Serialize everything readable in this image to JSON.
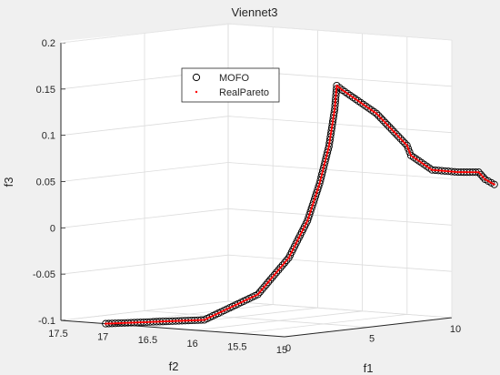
{
  "chart_data": {
    "type": "scatter3d",
    "title": "Viennet3",
    "xlabel": "f1",
    "ylabel": "f2",
    "zlabel": "f3",
    "xlim": [
      0,
      10
    ],
    "ylim": [
      15,
      17.5
    ],
    "zlim": [
      -0.1,
      0.2
    ],
    "xticks": [
      "0",
      "5",
      "10"
    ],
    "yticks": [
      "17.5",
      "17",
      "16.5",
      "16",
      "15.5",
      "15"
    ],
    "zticks": [
      "-0.1",
      "-0.05",
      "0",
      "0.05",
      "0.1",
      "0.15",
      "0.2"
    ],
    "grid": true,
    "legend": {
      "position": "top-left",
      "entries": [
        "MOFO",
        "RealPareto"
      ]
    },
    "colors": {
      "mofo": "#000000",
      "real": "#ff0000",
      "axis": "#262626",
      "grid": "#dcdcdc",
      "background": "#ffffff",
      "figure": "#f0f0f0"
    },
    "series": [
      {
        "name": "MOFO",
        "marker": "circle-open",
        "path": [
          [
            0.0,
            17.0,
            -0.1
          ],
          [
            0.55,
            16.0,
            -0.09
          ],
          [
            1.08,
            15.5,
            -0.06
          ],
          [
            1.64,
            15.26,
            -0.02
          ],
          [
            2.12,
            15.14,
            0.02
          ],
          [
            2.47,
            15.07,
            0.06
          ],
          [
            2.76,
            15.02,
            0.1
          ],
          [
            3.0,
            15.0,
            0.14
          ],
          [
            3.12,
            15.0,
            0.165
          ],
          [
            3.3,
            14.97,
            0.16
          ],
          [
            4.0,
            14.72,
            0.135
          ],
          [
            4.86,
            14.54,
            0.1
          ],
          [
            4.72,
            14.47,
            0.09
          ],
          [
            4.43,
            14.18,
            0.077
          ],
          [
            5.5,
            14.09,
            0.073
          ],
          [
            6.85,
            14.11,
            0.07
          ],
          [
            6.8,
            14.03,
            0.063
          ],
          [
            6.55,
            13.88,
            0.059
          ]
        ]
      },
      {
        "name": "RealPareto",
        "marker": "point",
        "path": [
          [
            0.0,
            17.0,
            -0.1
          ],
          [
            0.55,
            16.0,
            -0.09
          ],
          [
            1.08,
            15.5,
            -0.06
          ],
          [
            1.64,
            15.26,
            -0.02
          ],
          [
            2.12,
            15.14,
            0.02
          ],
          [
            2.47,
            15.07,
            0.06
          ],
          [
            2.76,
            15.02,
            0.1
          ],
          [
            3.0,
            15.0,
            0.14
          ],
          [
            3.12,
            15.0,
            0.165
          ],
          [
            3.3,
            14.97,
            0.16
          ],
          [
            4.0,
            14.72,
            0.135
          ],
          [
            4.86,
            14.54,
            0.1
          ],
          [
            4.72,
            14.47,
            0.09
          ],
          [
            4.43,
            14.18,
            0.077
          ],
          [
            5.5,
            14.09,
            0.073
          ],
          [
            6.85,
            14.11,
            0.07
          ],
          [
            6.8,
            14.03,
            0.063
          ],
          [
            6.55,
            13.88,
            0.059
          ]
        ]
      }
    ]
  }
}
